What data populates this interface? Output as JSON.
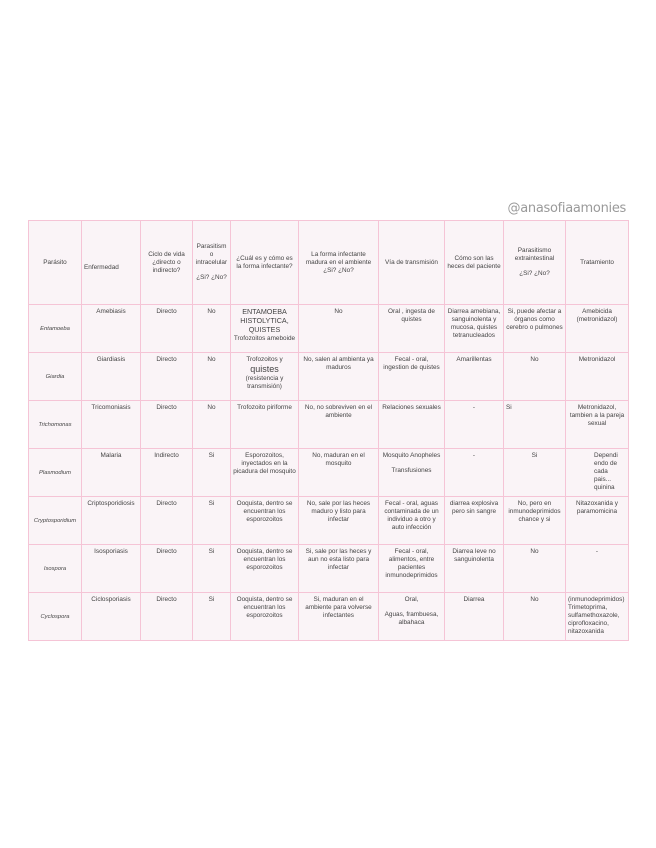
{
  "handle": "@anasofiaamonies",
  "headers": {
    "parasito": "Parásito",
    "enfermedad": "Enfermedad",
    "ciclo": "Ciclo de vida ¿directo o indirecto?",
    "intra_a": "Parasitism o intracelular",
    "intra_b": "¿Si? ¿No?",
    "forma": "¿Cuál es y cómo es la forma infectante?",
    "madura": "La forma infectante madura en el ambiente ¿Si? ¿No?",
    "via": "Vía de transmisión",
    "heces": "Cómo son las heces del paciente",
    "extra_a": "Parasitismo extraintestinal",
    "extra_b": "¿Si? ¿No?",
    "tratamiento": "Tratamiento"
  },
  "rows": [
    {
      "parasito": "Entamoeba",
      "enfermedad": "Amebiasis",
      "ciclo": "Directo",
      "intra": "No",
      "forma_a": "ENTAMOEBA HISTOLYTICA, QUISTES",
      "forma_b": "Trofozoitos ameboide",
      "madura": "No",
      "via": "Oral , ingesta de quistes",
      "heces": "Diarrea amebiana, sanguinolenta y mucosa, quistes tetranucleados",
      "extra": "Si, puede afectar a órganos como cerebro o pulmones",
      "tratamiento": "Amebicida (metronidazol)"
    },
    {
      "parasito": "Giardia",
      "enfermedad": "Giardiasis",
      "ciclo": "Directo",
      "intra": "No",
      "forma_a": "Trofozoitos y",
      "forma_big": "quistes",
      "forma_b": "(resistencia y transmisión)",
      "madura": "No, salen al ambienta ya maduros",
      "via": "Fecal - oral, ingestion de quistes",
      "heces": "Amarillentas",
      "extra": "No",
      "tratamiento": "Metronidazol"
    },
    {
      "parasito": "Trichomonas",
      "enfermedad": "Tricomoniasis",
      "ciclo": "Directo",
      "intra": "No",
      "forma_a": "Trofozoito piriforme",
      "madura": "No, no sobreviven en el ambiente",
      "via": "Relaciones sexuales",
      "heces": "-",
      "extra": "Si",
      "tratamiento": "Metronidazol, tambien a la pareja sexual"
    },
    {
      "parasito": "Plasmodium",
      "enfermedad": "Malaria",
      "ciclo": "Indirecto",
      "intra": "Si",
      "forma_a": "Esporozoitos, inyectados en la picadura del mosquito",
      "madura": "No, maduran en el mosquito",
      "via": "Mosquito Anopheles",
      "via_b": "Transfusiones",
      "heces": "-",
      "extra": "Si",
      "tratamiento": "Dependiendo de cada pais... quinina"
    },
    {
      "parasito": "Cryptosporidium",
      "enfermedad": "Criptosporidiosis",
      "ciclo": "Directo",
      "intra": "Si",
      "forma_a": "Ooquista, dentro se encuentran los esporozoitos",
      "madura": "No, sale por las heces maduro y listo para infectar",
      "via": "Fecal - oral, aguas contaminada de un individuo a otro y auto infección",
      "heces": "diarrea explosiva pero sin sangre",
      "extra": "No, pero en inmunodeprimidos chance y si",
      "tratamiento": "Nitazoxanida y paramomicina"
    },
    {
      "parasito": "Isospora",
      "enfermedad": "Isosporiasis",
      "ciclo": "Directo",
      "intra": "Si",
      "forma_a": "Ooquista, dentro se encuentran los esporozoitos",
      "madura": "Si, sale por las heces y aun no esta listo para infectar",
      "via": "Fecal - oral, alimentos, entre pacientes inmunodeprimidos",
      "heces": "Diarrea leve no sanguinolenta",
      "extra": "No",
      "tratamiento": "-"
    },
    {
      "parasito": "Cyclospora",
      "enfermedad": "Ciclosporiasis",
      "ciclo": "Directo",
      "intra": "Si",
      "forma_a": "Ooquista, dentro se encuentran los esporozoitos",
      "madura": "Si, maduran en el ambiente para volverse infectantes",
      "via": "Oral,",
      "via_b": "Aguas, frambuesa, albahaca",
      "heces": "Diarrea",
      "extra": "No",
      "tratamiento": "(inmunodeprimidos) Trimetoprima, sulfamethoxazole, ciprofloxacino, nitazoxanida"
    }
  ]
}
